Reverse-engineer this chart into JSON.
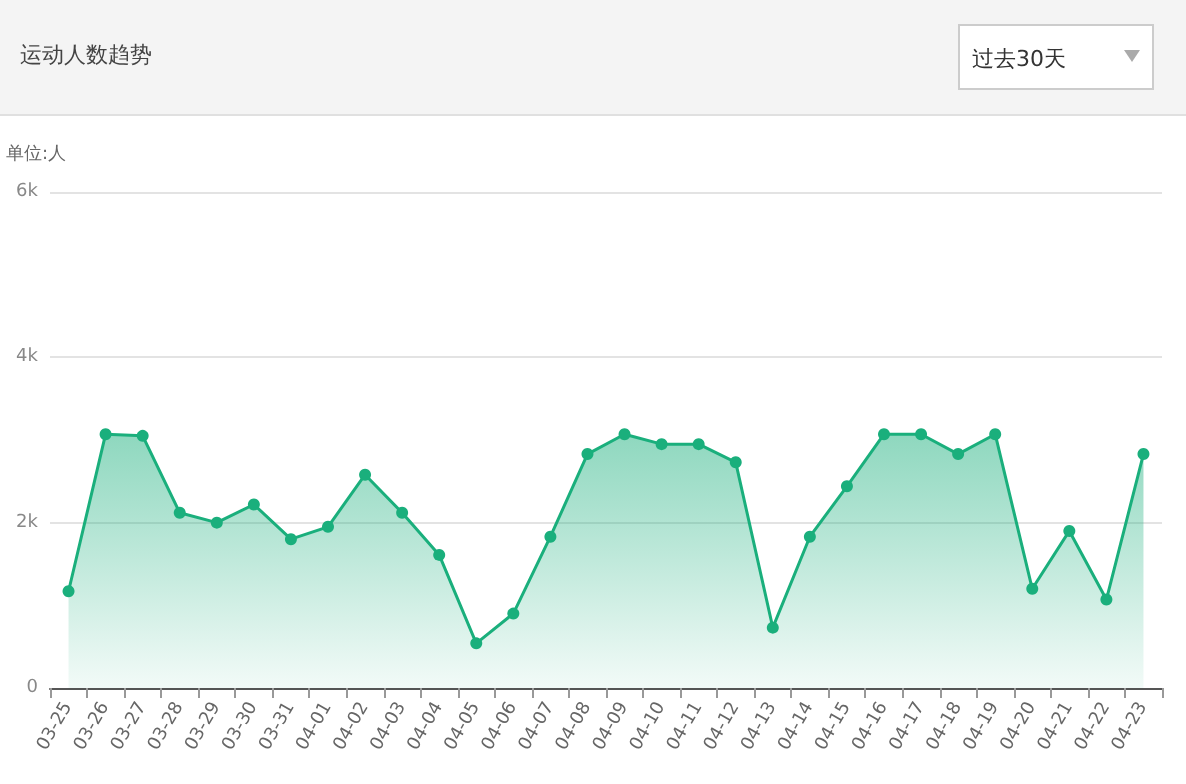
{
  "chart_data": {
    "type": "area",
    "title": "运动人数趋势",
    "ylabel": "单位:人",
    "annotations": [
      "过去30天"
    ],
    "categories": [
      "03-25",
      "03-26",
      "03-27",
      "03-28",
      "03-29",
      "03-30",
      "03-31",
      "04-01",
      "04-02",
      "04-03",
      "04-04",
      "04-05",
      "04-06",
      "04-07",
      "04-08",
      "04-09",
      "04-10",
      "04-11",
      "04-12",
      "04-13",
      "04-14",
      "04-15",
      "04-16",
      "04-17",
      "04-18",
      "04-19",
      "04-20",
      "04-21",
      "04-22",
      "04-23"
    ],
    "series": [
      {
        "color": "#1aaf7c",
        "values": [
          1170,
          3070,
          3050,
          2120,
          2000,
          2220,
          1800,
          1950,
          2580,
          2120,
          1610,
          540,
          900,
          1830,
          2830,
          3070,
          2950,
          2950,
          2730,
          730,
          1830,
          2440,
          3070,
          3070,
          2830,
          3070,
          1200,
          1900,
          1070,
          2830
        ]
      }
    ],
    "ylim": [
      0,
      6000
    ],
    "yticks": [
      {
        "value": 0,
        "label": "0"
      },
      {
        "value": 2000,
        "label": "2k"
      },
      {
        "value": 4000,
        "label": "4k"
      },
      {
        "value": 6000,
        "label": "6k"
      }
    ],
    "grid": "y",
    "marker": "circle"
  }
}
